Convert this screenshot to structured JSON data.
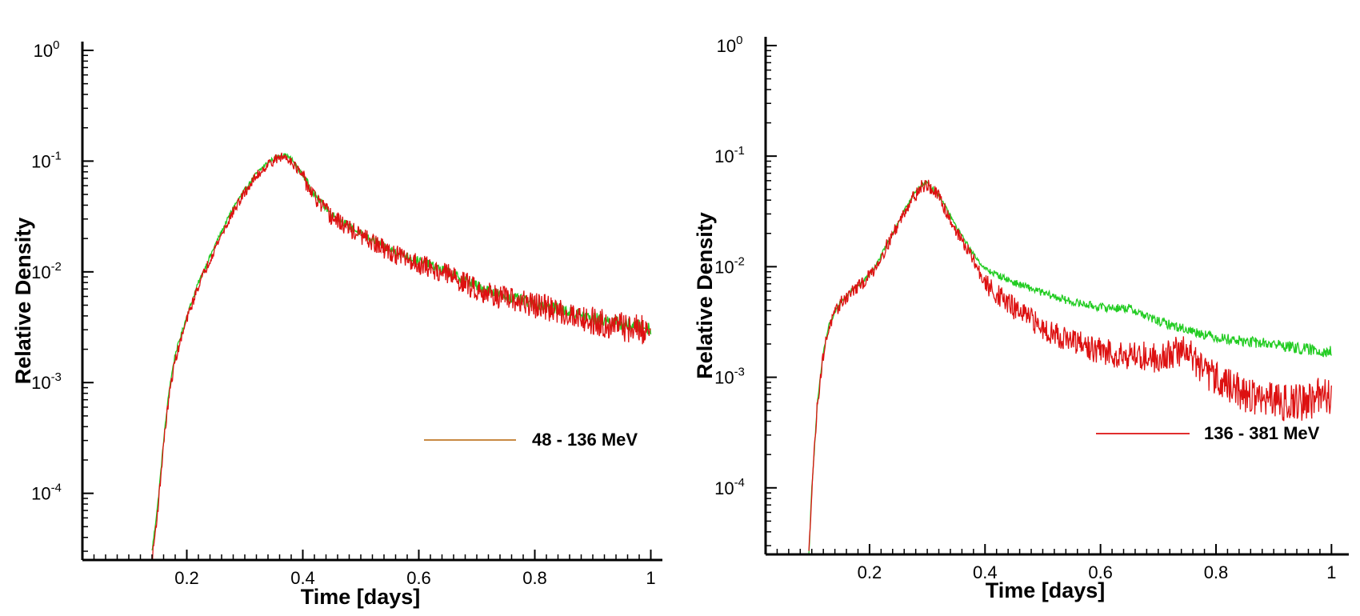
{
  "chart_data": [
    {
      "type": "line",
      "title": "",
      "xlabel": "Time [days]",
      "ylabel": "Relative Density",
      "yscale": "log",
      "xlim": [
        0.02,
        1.02
      ],
      "ylim": [
        2.5e-05,
        1.2
      ],
      "xticks": [
        0.2,
        0.4,
        0.6,
        0.8,
        1
      ],
      "xtick_labels": [
        "0.2",
        "0.4",
        "0.6",
        "0.8",
        "1"
      ],
      "ytick_exponents": [
        "0",
        "-1",
        "-2",
        "-3",
        "-4"
      ],
      "grid": false,
      "legend": {
        "label": "48 - 136 MeV",
        "line_color": "#c07828",
        "position": "middle-right"
      },
      "series": [
        {
          "color": "#22cc22",
          "noise": 0.02,
          "x": [
            0.14,
            0.15,
            0.16,
            0.17,
            0.18,
            0.2,
            0.22,
            0.25,
            0.28,
            0.3,
            0.32,
            0.34,
            0.36,
            0.37,
            0.38,
            0.4,
            0.42,
            0.45,
            0.5,
            0.55,
            0.6,
            0.65,
            0.7,
            0.75,
            0.8,
            0.85,
            0.9,
            0.95,
            1.0
          ],
          "y": [
            3e-05,
            8e-05,
            0.0003,
            0.0009,
            0.0018,
            0.004,
            0.008,
            0.018,
            0.038,
            0.055,
            0.077,
            0.098,
            0.112,
            0.113,
            0.105,
            0.075,
            0.05,
            0.033,
            0.022,
            0.016,
            0.0125,
            0.01,
            0.0075,
            0.006,
            0.0052,
            0.0045,
            0.0038,
            0.0034,
            0.0031
          ]
        },
        {
          "color": "#dd1111",
          "noise": 0.045,
          "x": [
            0.14,
            0.15,
            0.16,
            0.17,
            0.18,
            0.2,
            0.22,
            0.25,
            0.28,
            0.3,
            0.32,
            0.34,
            0.36,
            0.37,
            0.38,
            0.4,
            0.42,
            0.45,
            0.5,
            0.55,
            0.6,
            0.65,
            0.7,
            0.75,
            0.8,
            0.85,
            0.9,
            0.95,
            1.0
          ],
          "y": [
            2.5e-05,
            7e-05,
            0.00028,
            0.0008,
            0.0016,
            0.0037,
            0.0075,
            0.017,
            0.035,
            0.052,
            0.073,
            0.094,
            0.108,
            0.109,
            0.101,
            0.072,
            0.047,
            0.031,
            0.021,
            0.015,
            0.0118,
            0.0095,
            0.007,
            0.0057,
            0.005,
            0.0043,
            0.0036,
            0.0032,
            0.0029
          ]
        }
      ]
    },
    {
      "type": "line",
      "title": "",
      "xlabel": "Time [days]",
      "ylabel": "Relative Density",
      "yscale": "log",
      "xlim": [
        0.02,
        1.03
      ],
      "ylim": [
        2.5e-05,
        1.2
      ],
      "xticks": [
        0.2,
        0.4,
        0.6,
        0.8,
        1
      ],
      "xtick_labels": [
        "0.2",
        "0.4",
        "0.6",
        "0.8",
        "1"
      ],
      "ytick_exponents": [
        "0",
        "-1",
        "-2",
        "-3",
        "-4"
      ],
      "grid": false,
      "legend": {
        "label": "136 - 381 MeV",
        "line_color": "#dd1111",
        "position": "middle-right"
      },
      "series": [
        {
          "color": "#22cc22",
          "noise": 0.018,
          "x": [
            0.095,
            0.1,
            0.11,
            0.12,
            0.13,
            0.15,
            0.17,
            0.19,
            0.21,
            0.24,
            0.27,
            0.29,
            0.3,
            0.32,
            0.35,
            0.38,
            0.4,
            0.45,
            0.5,
            0.55,
            0.6,
            0.65,
            0.7,
            0.75,
            0.8,
            0.85,
            0.9,
            0.95,
            1.0
          ],
          "y": [
            2.5e-05,
            0.0001,
            0.0006,
            0.0017,
            0.003,
            0.0048,
            0.0062,
            0.0074,
            0.01,
            0.02,
            0.04,
            0.055,
            0.057,
            0.045,
            0.023,
            0.013,
            0.0095,
            0.0072,
            0.0058,
            0.0048,
            0.0043,
            0.0042,
            0.0032,
            0.0027,
            0.0023,
            0.0021,
            0.002,
            0.0018,
            0.0017
          ]
        },
        {
          "color": "#dd1111",
          "noise": 0.06,
          "x": [
            0.095,
            0.1,
            0.11,
            0.12,
            0.13,
            0.15,
            0.17,
            0.19,
            0.21,
            0.24,
            0.27,
            0.29,
            0.3,
            0.32,
            0.35,
            0.38,
            0.4,
            0.45,
            0.5,
            0.55,
            0.6,
            0.65,
            0.7,
            0.75,
            0.78,
            0.8,
            0.85,
            0.9,
            0.95,
            1.0
          ],
          "y": [
            2.5e-05,
            0.0001,
            0.0006,
            0.0016,
            0.0029,
            0.0047,
            0.006,
            0.0072,
            0.0098,
            0.0195,
            0.039,
            0.053,
            0.055,
            0.043,
            0.021,
            0.0115,
            0.007,
            0.0042,
            0.0028,
            0.0021,
            0.0017,
            0.0016,
            0.0015,
            0.0018,
            0.0011,
            0.001,
            0.0007,
            0.0006,
            0.0006,
            0.0007
          ]
        }
      ]
    }
  ]
}
